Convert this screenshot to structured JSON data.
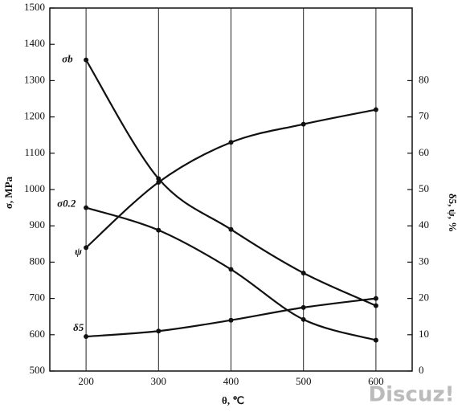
{
  "chart_data": {
    "type": "line",
    "x_label": "θ, ℃",
    "y_label": "σ, MPa",
    "y2_label": "δ5, ψ, %",
    "watermark": "Discuz!",
    "x": [
      200,
      300,
      400,
      500,
      600
    ],
    "xlim": [
      150,
      650
    ],
    "xticks": [
      200,
      300,
      400,
      500,
      600
    ],
    "ylim": [
      500,
      1500
    ],
    "yticks": [
      500,
      600,
      700,
      800,
      900,
      1000,
      1100,
      1200,
      1300,
      1400,
      1500
    ],
    "y2lim": [
      0,
      100
    ],
    "y2ticks": [
      0,
      10,
      20,
      30,
      40,
      50,
      60,
      70,
      80
    ],
    "grid": "x",
    "series": [
      {
        "name": "σb",
        "color": "#111111",
        "values": [
          1357,
          1030,
          890,
          770,
          680
        ]
      },
      {
        "name": "σ0.2",
        "color": "#111111",
        "values": [
          950,
          888,
          780,
          642,
          585
        ]
      },
      {
        "name": "ψ",
        "color": "#111111",
        "axis": "y2",
        "values": [
          34,
          52,
          63,
          68,
          72
        ]
      },
      {
        "name": "δ5",
        "color": "#111111",
        "axis": "y2",
        "values": [
          9.5,
          11,
          14,
          17.5,
          20
        ]
      }
    ]
  }
}
